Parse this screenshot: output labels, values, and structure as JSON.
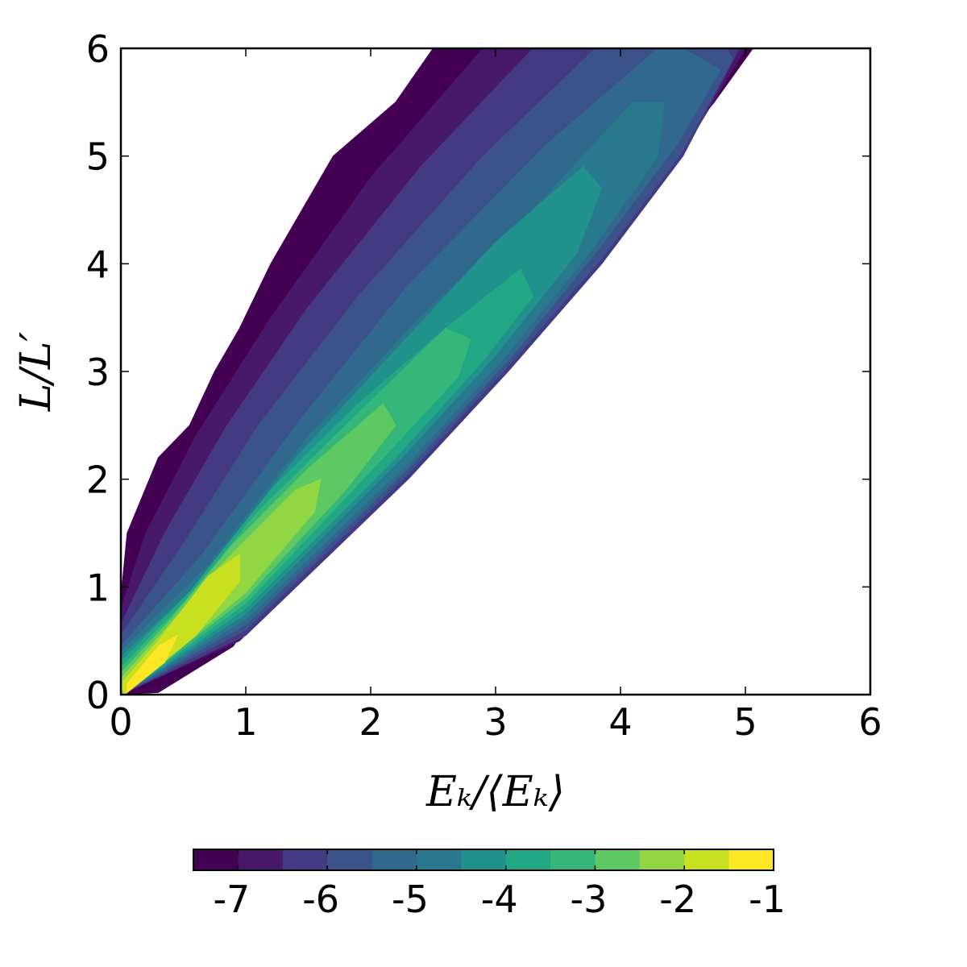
{
  "chart_data": {
    "type": "contourf",
    "x_label": "Eₖ/⟨Eₖ⟩",
    "y_label": "L/L′",
    "xlim": [
      0,
      6
    ],
    "ylim": [
      0,
      6
    ],
    "xticks": [
      0,
      1,
      2,
      3,
      4,
      5,
      6
    ],
    "yticks": [
      0,
      1,
      2,
      3,
      4,
      5,
      6
    ],
    "levels": [
      -7.5,
      -7,
      -6.5,
      -6,
      -5.5,
      -5,
      -4.5,
      -4,
      -3.5,
      -3,
      -2.5,
      -2,
      -1.5,
      -1
    ],
    "colorbar_ticks": [
      -7,
      -6,
      -5,
      -4,
      -3,
      -2,
      -1
    ],
    "colors": [
      "#440154",
      "#48186a",
      "#443a83",
      "#3b528b",
      "#31688e",
      "#29798e",
      "#21918c",
      "#22a785",
      "#35b779",
      "#5ec962",
      "#90d743",
      "#c8e020",
      "#fde725"
    ],
    "regions": [
      {
        "x": [
          0,
          0.3,
          0.9,
          1.2,
          1.7,
          2.15,
          2.6,
          2.97,
          3.4,
          3.74,
          4.1,
          4.4,
          4.75,
          5.06,
          2.5,
          2.2,
          1.7,
          1.4,
          1.2,
          0.95,
          0.75,
          0.55,
          0.3,
          0.05,
          0
        ],
        "y": [
          0,
          0.02,
          0.45,
          1.0,
          1.5,
          2.0,
          2.5,
          3.0,
          3.5,
          4.0,
          4.5,
          5.0,
          5.5,
          6,
          6,
          5.5,
          5.0,
          4.4,
          4.0,
          3.4,
          3.0,
          2.5,
          2.2,
          1.5,
          0.9
        ]
      },
      {
        "x": [
          0,
          0.95,
          2.25,
          3.05,
          3.82,
          4.48,
          5.0,
          2.9,
          2.0,
          1.2,
          0.6,
          0.2,
          0
        ],
        "y": [
          0,
          0.5,
          2,
          3,
          4,
          5,
          6,
          6,
          4.8,
          3.5,
          2.4,
          1.5,
          0.8
        ]
      },
      {
        "x": [
          0,
          1.0,
          2.3,
          3.1,
          3.85,
          4.5,
          4.95,
          3.3,
          2.4,
          1.5,
          0.85,
          0.35,
          0
        ],
        "y": [
          0,
          0.55,
          2,
          3,
          4,
          5,
          6,
          6,
          4.9,
          3.6,
          2.5,
          1.5,
          0.65
        ]
      },
      {
        "x": [
          0,
          1.0,
          2.3,
          3.1,
          3.85,
          4.5,
          4.9,
          4.85,
          3.8,
          2.9,
          1.9,
          1.1,
          0.5,
          0
        ],
        "y": [
          0,
          0.6,
          2.05,
          3.05,
          4.05,
          5.05,
          5.9,
          6,
          6,
          5.0,
          3.7,
          2.5,
          1.4,
          0.55
        ]
      },
      {
        "x": [
          0,
          1.0,
          2.3,
          3.1,
          3.8,
          4.45,
          4.8,
          4.5,
          4.3,
          3.4,
          2.3,
          1.4,
          0.65,
          0
        ],
        "y": [
          0,
          0.65,
          2.1,
          3.1,
          4.1,
          5.1,
          5.8,
          6,
          6,
          5.1,
          3.8,
          2.5,
          1.3,
          0.45
        ]
      },
      {
        "x": [
          0,
          1.0,
          2.3,
          3.05,
          3.75,
          4.3,
          4.35,
          4.1,
          3.3,
          2.4,
          1.5,
          0.7,
          0
        ],
        "y": [
          0,
          0.7,
          2.15,
          3.1,
          4.1,
          5.0,
          5.5,
          5.5,
          4.5,
          3.5,
          2.4,
          1.2,
          0.4
        ]
      },
      {
        "x": [
          0,
          1.0,
          2.25,
          3.0,
          3.65,
          3.85,
          3.7,
          3.0,
          2.2,
          1.4,
          0.6,
          0
        ],
        "y": [
          0,
          0.75,
          2.2,
          3.15,
          4.1,
          4.7,
          4.9,
          4.2,
          3.2,
          2.2,
          1.0,
          0.35
        ]
      },
      {
        "x": [
          0,
          1.0,
          2.2,
          2.9,
          3.3,
          3.2,
          2.6,
          1.9,
          1.2,
          0.55,
          0
        ],
        "y": [
          0,
          0.8,
          2.2,
          3.1,
          3.7,
          3.95,
          3.4,
          2.7,
          1.9,
          0.95,
          0.3
        ]
      },
      {
        "x": [
          0,
          1.0,
          2.1,
          2.7,
          2.8,
          2.6,
          1.8,
          1.1,
          0.5,
          0
        ],
        "y": [
          0,
          0.85,
          2.2,
          2.95,
          3.3,
          3.4,
          2.5,
          1.7,
          0.85,
          0.25
        ]
      },
      {
        "x": [
          0,
          1.0,
          1.8,
          2.2,
          2.1,
          1.5,
          0.9,
          0.4,
          0
        ],
        "y": [
          0,
          0.9,
          1.9,
          2.5,
          2.7,
          2.1,
          1.4,
          0.7,
          0.2
        ]
      },
      {
        "x": [
          0.02,
          1.0,
          1.55,
          1.6,
          1.4,
          0.8,
          0.35,
          0
        ],
        "y": [
          0,
          0.95,
          1.7,
          2.0,
          1.9,
          1.2,
          0.6,
          0.15
        ]
      },
      {
        "x": [
          0.03,
          0.6,
          0.95,
          0.95,
          0.7,
          0.3,
          0
        ],
        "y": [
          0,
          0.55,
          1.05,
          1.3,
          1.1,
          0.5,
          0.1
        ]
      },
      {
        "x": [
          0.05,
          0.35,
          0.45,
          0.3,
          0.05
        ],
        "y": [
          0.02,
          0.3,
          0.55,
          0.45,
          0.1
        ]
      }
    ]
  }
}
